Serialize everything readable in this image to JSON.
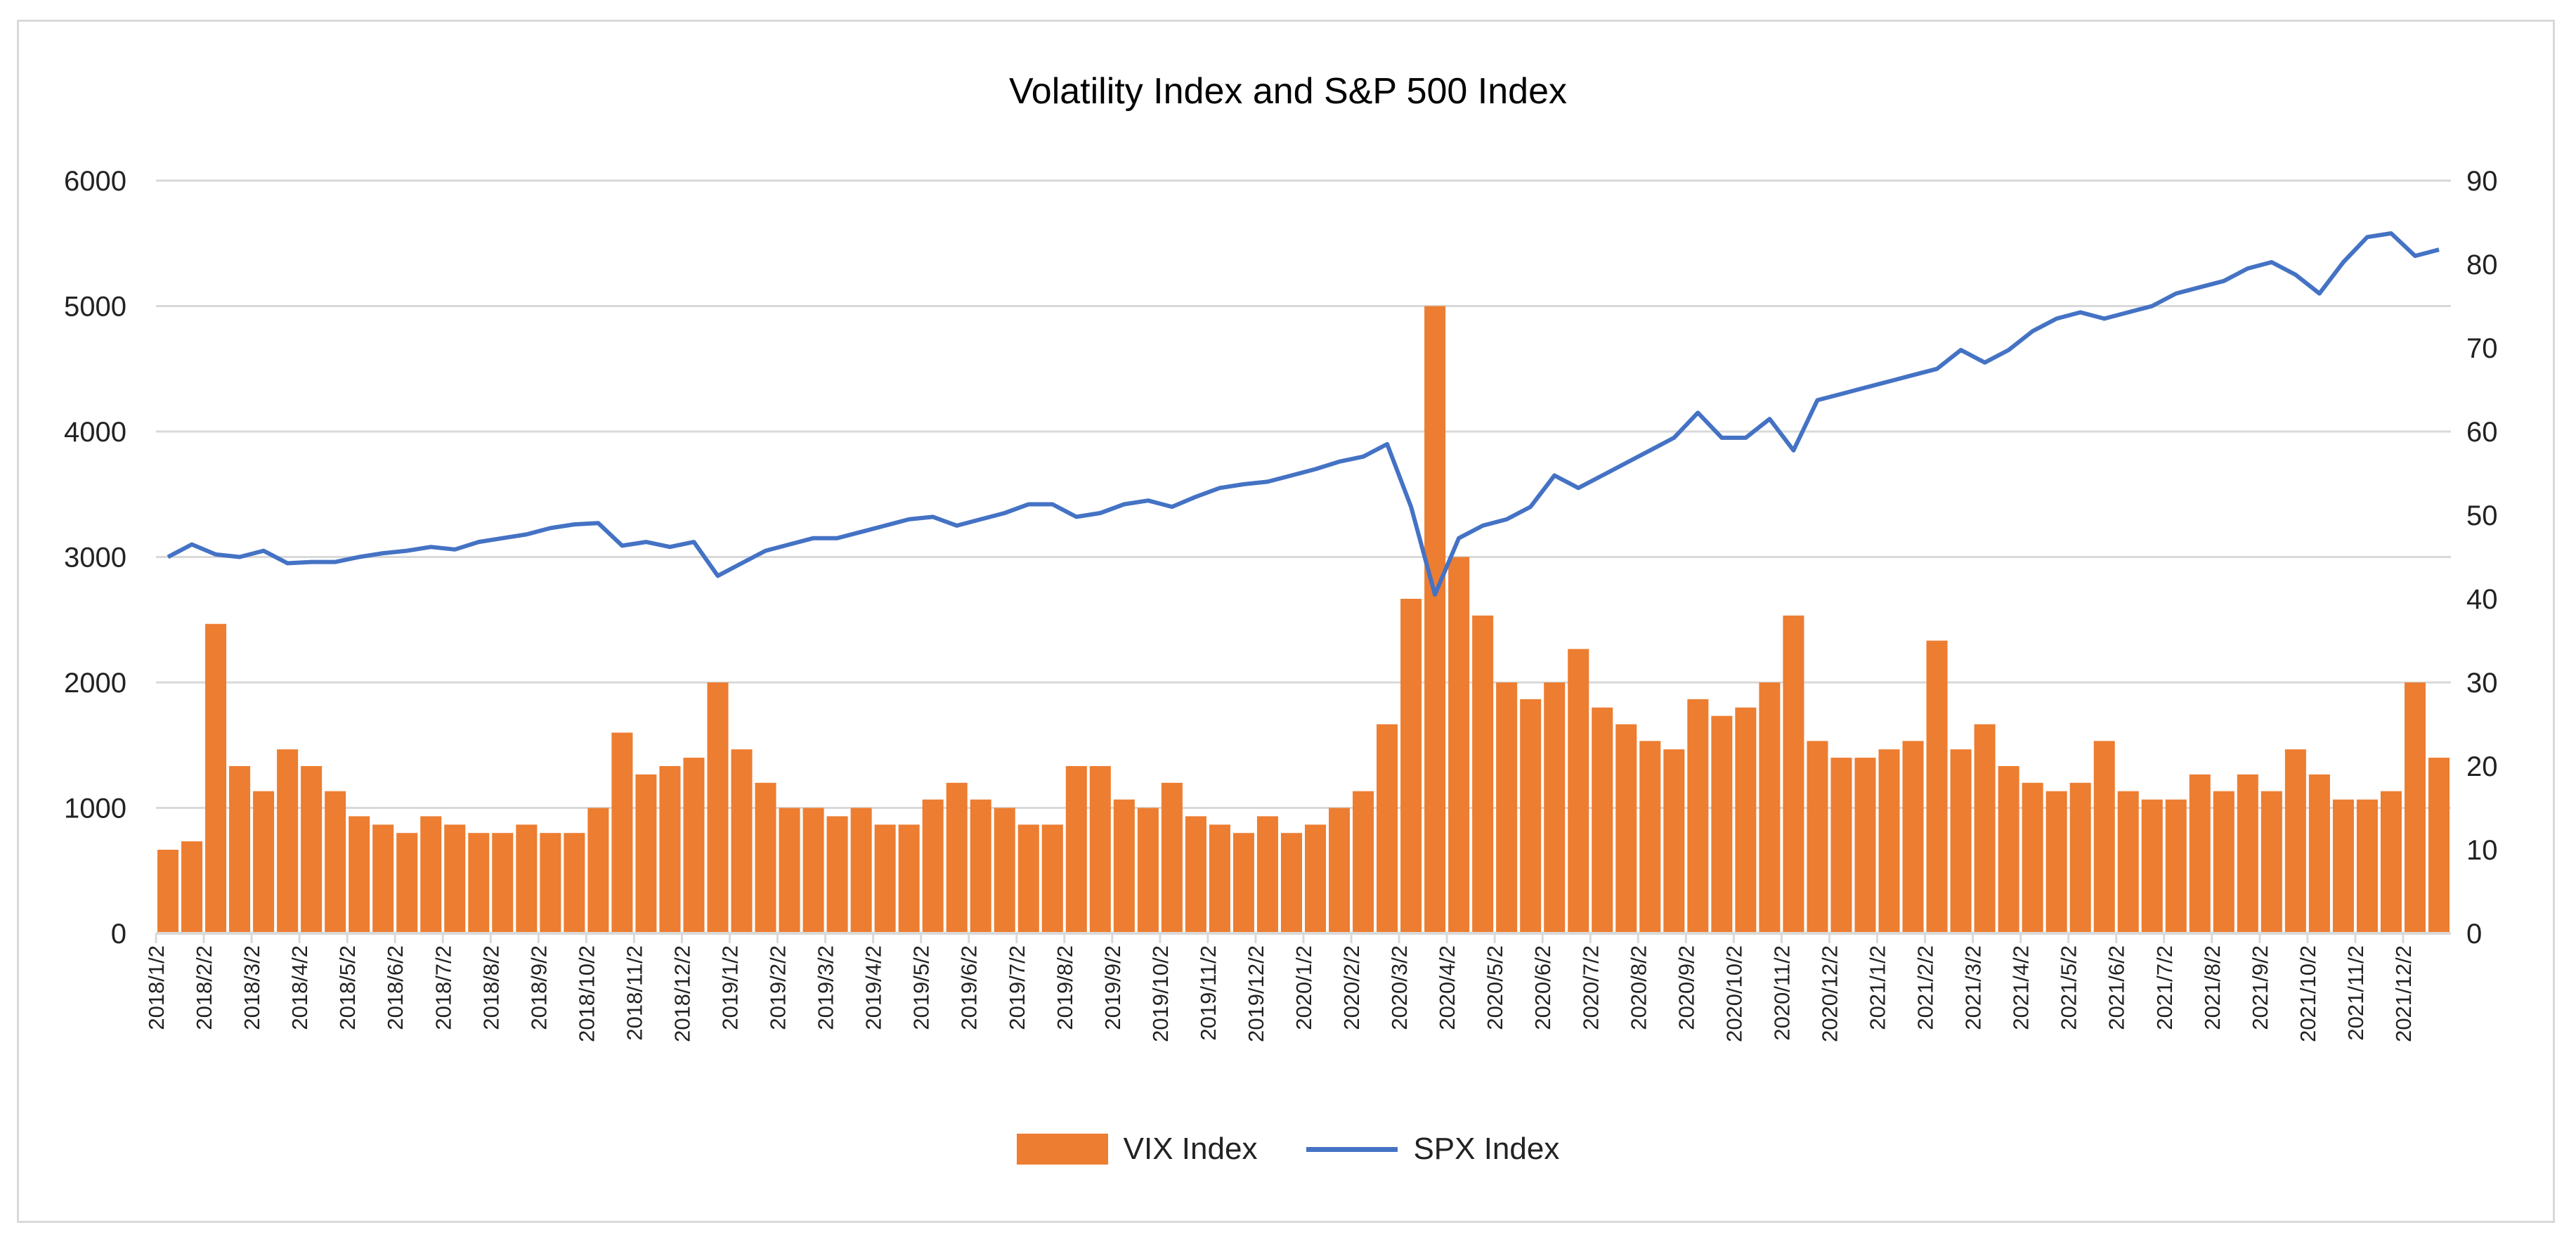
{
  "chart_data": {
    "type": "bar+line",
    "title": "Volatility Index and S&P 500 Index",
    "left_axis": {
      "ylim": [
        0,
        6000
      ],
      "ticks": [
        "0",
        "1000",
        "2000",
        "3000",
        "4000",
        "5000",
        "6000"
      ]
    },
    "right_axis": {
      "ylim": [
        0,
        90
      ],
      "ticks": [
        "0",
        "10",
        "20",
        "30",
        "40",
        "50",
        "60",
        "70",
        "80",
        "90"
      ]
    },
    "grid": true,
    "legend_position": "bottom",
    "x_tick_labels": [
      "2018/1/2",
      "2018/2/2",
      "2018/3/2",
      "2018/4/2",
      "2018/5/2",
      "2018/6/2",
      "2018/7/2",
      "2018/8/2",
      "2018/9/2",
      "2018/10/2",
      "2018/11/2",
      "2018/12/2",
      "2019/1/2",
      "2019/2/2",
      "2019/3/2",
      "2019/4/2",
      "2019/5/2",
      "2019/6/2",
      "2019/7/2",
      "2019/8/2",
      "2019/9/2",
      "2019/10/2",
      "2019/11/2",
      "2019/12/2",
      "2020/1/2",
      "2020/2/2",
      "2020/3/2",
      "2020/4/2",
      "2020/5/2",
      "2020/6/2",
      "2020/7/2",
      "2020/8/2",
      "2020/9/2",
      "2020/10/2",
      "2020/11/2",
      "2020/12/2",
      "2021/1/2",
      "2021/2/2",
      "2021/3/2",
      "2021/4/2",
      "2021/5/2",
      "2021/6/2",
      "2021/7/2",
      "2021/8/2",
      "2021/9/2",
      "2021/10/2",
      "2021/11/2",
      "2021/12/2"
    ],
    "series": [
      {
        "name": "VIX Index",
        "type": "bar",
        "axis": "right",
        "color": "#ed7d31",
        "values": [
          10,
          11,
          37,
          20,
          17,
          22,
          20,
          17,
          14,
          13,
          12,
          14,
          13,
          12,
          12,
          13,
          12,
          12,
          15,
          24,
          19,
          20,
          21,
          30,
          22,
          18,
          15,
          15,
          14,
          15,
          13,
          13,
          16,
          18,
          16,
          15,
          13,
          13,
          20,
          20,
          16,
          15,
          18,
          14,
          13,
          12,
          14,
          12,
          13,
          15,
          17,
          25,
          40,
          75,
          45,
          38,
          30,
          28,
          30,
          34,
          27,
          25,
          23,
          22,
          28,
          26,
          27,
          30,
          38,
          23,
          21,
          21,
          22,
          23,
          35,
          22,
          25,
          20,
          18,
          17,
          18,
          23,
          17,
          16,
          16,
          19,
          17,
          19,
          17,
          22,
          19,
          16,
          16,
          17,
          30,
          21
        ]
      },
      {
        "name": "SPX Index",
        "type": "line",
        "axis": "left",
        "color": "#4472c4",
        "values": [
          3000,
          3100,
          3020,
          3000,
          3050,
          2950,
          2960,
          2960,
          3000,
          3030,
          3050,
          3080,
          3060,
          3120,
          3150,
          3180,
          3230,
          3260,
          3270,
          3090,
          3120,
          3080,
          3120,
          2850,
          2950,
          3050,
          3100,
          3150,
          3150,
          3200,
          3250,
          3300,
          3320,
          3250,
          3300,
          3350,
          3420,
          3420,
          3320,
          3350,
          3420,
          3450,
          3400,
          3480,
          3550,
          3580,
          3600,
          3650,
          3700,
          3760,
          3800,
          3900,
          3400,
          2700,
          3150,
          3250,
          3300,
          3400,
          3650,
          3550,
          3650,
          3750,
          3850,
          3950,
          4150,
          3950,
          3950,
          4100,
          3850,
          4250,
          4300,
          4350,
          4400,
          4450,
          4500,
          4650,
          4550,
          4650,
          4800,
          4900,
          4950,
          4900,
          4950,
          5000,
          5100,
          5150,
          5200,
          5300,
          5350,
          5250,
          5100,
          5350,
          5550,
          5580,
          5400,
          5450
        ]
      }
    ]
  }
}
